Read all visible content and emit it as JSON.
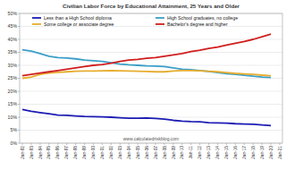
{
  "chart_data": {
    "type": "line",
    "title": "Civilian Labor Force by Educational Attainment, 25 Years and Older",
    "source": "www.calculatedriskblog.com",
    "categories": [
      "Jan-92",
      "Jan-93",
      "Jan-94",
      "Jan-95",
      "Jan-96",
      "Jan-97",
      "Jan-98",
      "Jan-99",
      "Jan-00",
      "Jan-01",
      "Jan-02",
      "Jan-03",
      "Jan-04",
      "Jan-05",
      "Jan-06",
      "Jan-07",
      "Jan-08",
      "Jan-09",
      "Jan-10",
      "Jan-11",
      "Jan-12",
      "Jan-13",
      "Jan-14",
      "Jan-15",
      "Jan-16",
      "Jan-17",
      "Jan-18",
      "Jan-19",
      "Jan-20",
      "Jan-21"
    ],
    "series": [
      {
        "name": "Less than a High School diploma",
        "color": "#1c1cb4",
        "values": [
          13.0,
          12.3,
          11.8,
          11.3,
          10.8,
          10.7,
          10.5,
          10.3,
          10.2,
          10.1,
          10.0,
          9.8,
          9.6,
          9.6,
          9.7,
          9.5,
          9.3,
          8.8,
          8.5,
          8.3,
          8.2,
          7.9,
          7.8,
          7.7,
          7.5,
          7.4,
          7.3,
          7.0,
          6.8,
          null
        ]
      },
      {
        "name": "High School graduates, no college",
        "color": "#3a9fc8",
        "values": [
          36.0,
          35.5,
          34.5,
          33.5,
          33.0,
          32.8,
          32.5,
          32.0,
          31.8,
          31.5,
          31.0,
          30.5,
          30.2,
          30.0,
          29.8,
          29.7,
          29.5,
          29.0,
          28.5,
          28.3,
          28.0,
          27.6,
          27.2,
          26.8,
          26.5,
          26.2,
          25.8,
          25.5,
          25.3,
          null
        ]
      },
      {
        "name": "Some college or associate degree",
        "color": "#e6ad2e",
        "values": [
          25.0,
          25.5,
          26.5,
          27.0,
          27.3,
          27.5,
          27.7,
          27.8,
          27.8,
          27.9,
          28.0,
          27.9,
          27.8,
          27.7,
          27.6,
          27.5,
          27.5,
          27.8,
          28.0,
          28.0,
          27.9,
          27.7,
          27.5,
          27.2,
          26.9,
          26.7,
          26.5,
          26.2,
          26.0,
          null
        ]
      },
      {
        "name": "Bachelor's degree and higher",
        "color": "#d01e1e",
        "values": [
          26.0,
          26.5,
          27.0,
          27.5,
          28.0,
          28.5,
          29.0,
          29.5,
          30.0,
          30.3,
          30.8,
          31.5,
          32.0,
          32.3,
          32.7,
          33.0,
          33.5,
          34.0,
          34.5,
          35.3,
          35.8,
          36.5,
          37.0,
          37.8,
          38.5,
          39.2,
          40.0,
          41.0,
          42.0,
          null
        ]
      }
    ],
    "ylim": [
      0,
      50
    ],
    "yticks": [
      {
        "value": 0,
        "label": "0%"
      },
      {
        "value": 5,
        "label": "5%"
      },
      {
        "value": 10,
        "label": "10%"
      },
      {
        "value": 15,
        "label": "15%"
      },
      {
        "value": 20,
        "label": "20%"
      },
      {
        "value": 25,
        "label": "25%"
      },
      {
        "value": 30,
        "label": "30%"
      },
      {
        "value": 35,
        "label": "35%"
      },
      {
        "value": 40,
        "label": "40%"
      },
      {
        "value": 45,
        "label": "45%"
      },
      {
        "value": 50,
        "label": "50%"
      }
    ],
    "grid": true,
    "legend": "top"
  }
}
